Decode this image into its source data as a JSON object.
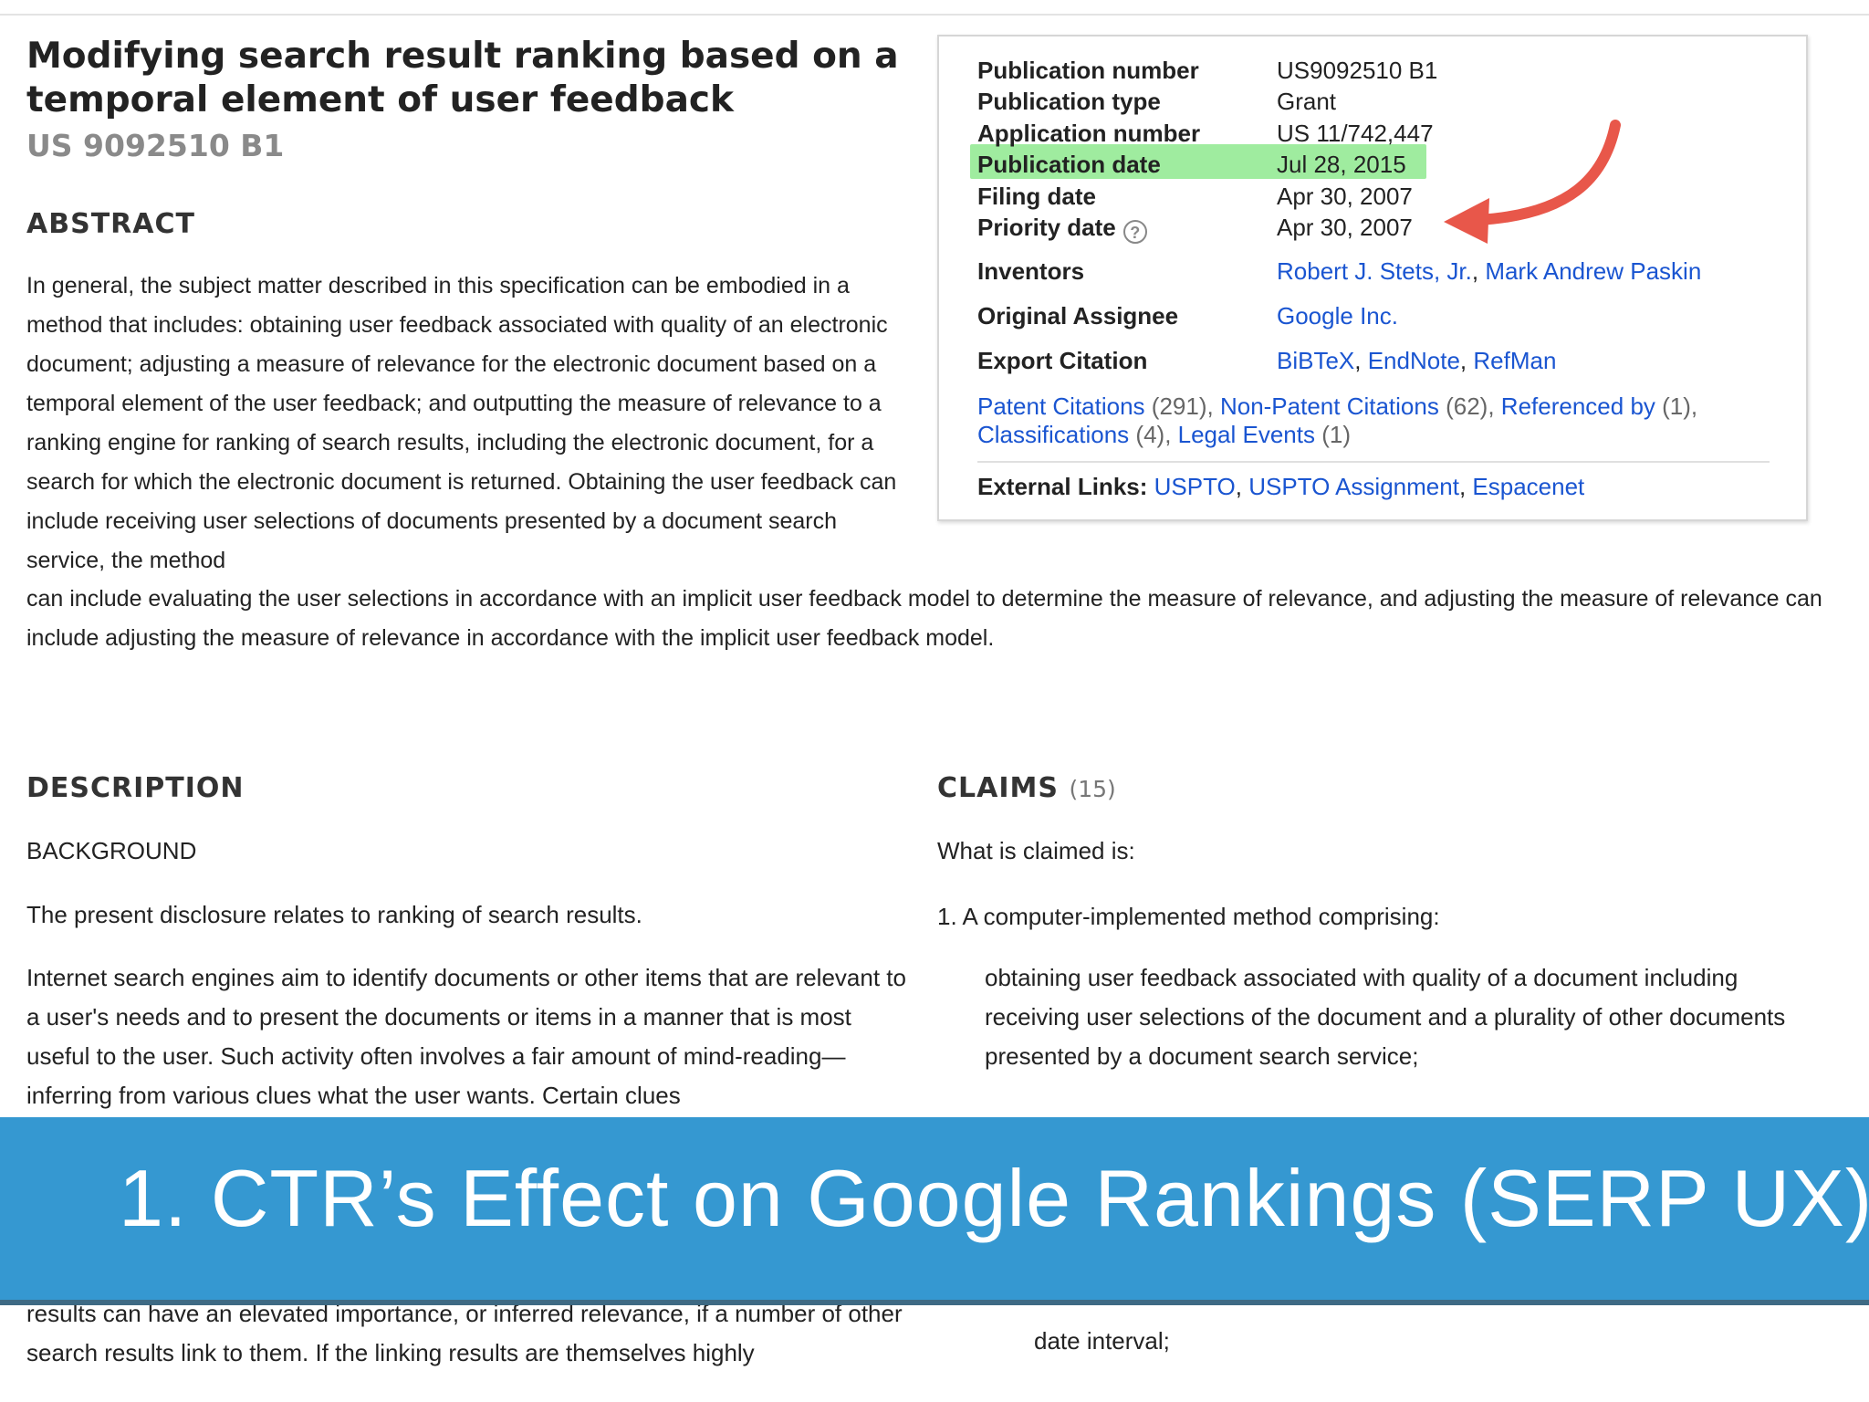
{
  "patent": {
    "title": "Modifying search result ranking based on a temporal element of user feedback",
    "number": "US 9092510 B1"
  },
  "abstract": {
    "heading": "ABSTRACT",
    "text_top": "In general, the subject matter described in this specification can be embodied in a method that includes: obtaining user feedback associated with quality of an electronic document; adjusting a measure of relevance for the electronic document based on a temporal element of the user feedback; and outputting the measure of relevance to a ranking engine for ranking of search results, including the electronic document, for a search for which the electronic document is returned. Obtaining the user feedback can include receiving user selections of documents presented by a document search service, the method",
    "text_bottom": "can include evaluating the user selections in accordance with an implicit user feedback model to determine the measure of relevance, and adjusting the measure of relevance can include adjusting the measure of relevance in accordance with the implicit user feedback model."
  },
  "info": {
    "rows": [
      {
        "label": "Publication number",
        "value": "US9092510 B1"
      },
      {
        "label": "Publication type",
        "value": "Grant"
      },
      {
        "label": "Application number",
        "value": "US 11/742,447"
      },
      {
        "label": "Publication date",
        "value": "Jul 28, 2015"
      },
      {
        "label": "Filing date",
        "value": "Apr 30, 2007"
      },
      {
        "label": "Priority date",
        "value": "Apr 30, 2007"
      }
    ],
    "help_glyph": "?",
    "inventors_label": "Inventors",
    "inventors": [
      "Robert J. Stets, Jr.",
      "Mark Andrew Paskin"
    ],
    "assignee_label": "Original Assignee",
    "assignee": "Google Inc.",
    "export_label": "Export Citation",
    "export": [
      "BiBTeX",
      "EndNote",
      "RefMan"
    ],
    "citations": [
      {
        "label": "Patent Citations",
        "count": "(291)"
      },
      {
        "label": "Non-Patent Citations",
        "count": "(62)"
      },
      {
        "label": "Referenced by",
        "count": "(1)"
      },
      {
        "label": "Classifications",
        "count": "(4)"
      },
      {
        "label": "Legal Events",
        "count": "(1)"
      }
    ],
    "external_label": "External Links:",
    "external": [
      "USPTO",
      "USPTO Assignment",
      "Espacenet"
    ]
  },
  "description": {
    "heading": "DESCRIPTION",
    "background": "BACKGROUND",
    "para1": "The present disclosure relates to ranking of search results.",
    "para2": "Internet search engines aim to identify documents or other items that are relevant to a user's needs and to present the documents or items in a manner that is most useful to the user. Such activity often involves a fair amount of mind-reading—inferring from various clues what the user wants. Certain clues",
    "para3": "results can have an elevated importance, or inferred relevance, if a number of other search results link to them. If the linking results are themselves highly"
  },
  "claims": {
    "heading": "CLAIMS",
    "count": "(15)",
    "intro": "What is claimed is:",
    "claim1": "1. A computer-implemented method comprising:",
    "claim1_a": "obtaining user feedback associated with quality of a document including receiving user selections of the document and a plurality of other documents presented by a document search service;",
    "claim_tail": "date interval;"
  },
  "banner": {
    "text": "1. CTR’s Effect on Google Rankings (SERP UX)"
  },
  "colors": {
    "link": "#1a55d1",
    "highlight": "#8ee98e",
    "arrow": "#e8574a",
    "banner": "#2892ce"
  }
}
